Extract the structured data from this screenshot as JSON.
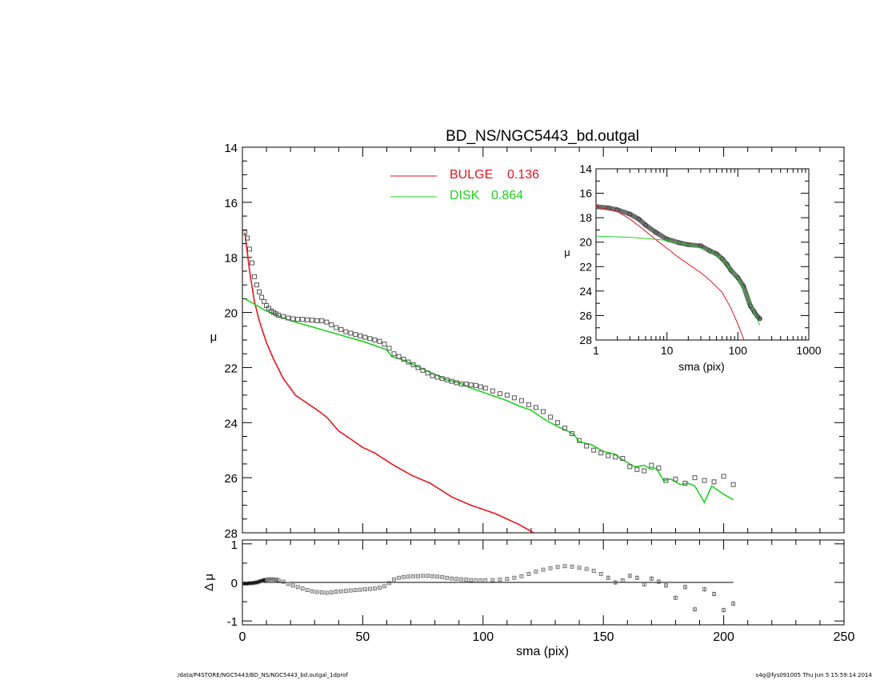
{
  "chart_data": [
    {
      "type": "line",
      "title": "BD_NS/NGC5443_bd.outgal",
      "xlabel": "sma (pix)",
      "ylabel": "μ",
      "xlim": [
        0,
        250
      ],
      "ylim": [
        28,
        14
      ],
      "y_inverted": true,
      "xticks": [
        "0",
        "50",
        "100",
        "150",
        "200",
        "250"
      ],
      "yticks": [
        "14",
        "16",
        "18",
        "20",
        "22",
        "24",
        "26",
        "28"
      ],
      "grid": false,
      "legend": {
        "placement": "top-center",
        "entries": [
          {
            "label": "BULGE",
            "value": "0.136",
            "color": "#e8141e"
          },
          {
            "label": "DISK",
            "value": "0.864",
            "color": "#1ed21e"
          }
        ]
      },
      "series": [
        {
          "name": "BULGE",
          "color": "#e8141e",
          "x": [
            1,
            3,
            5,
            7,
            10,
            13,
            17,
            22,
            27,
            32,
            35,
            40,
            45,
            50,
            55,
            62,
            70,
            78,
            87,
            95,
            105,
            115,
            121
          ],
          "y": [
            17.1,
            18.5,
            19.6,
            20.3,
            21.1,
            21.7,
            22.4,
            23.0,
            23.3,
            23.6,
            23.8,
            24.3,
            24.6,
            24.9,
            25.1,
            25.5,
            25.9,
            26.2,
            26.7,
            27.0,
            27.3,
            27.7,
            28.0
          ]
        },
        {
          "name": "DISK",
          "color": "#1ed21e",
          "x": [
            1,
            5,
            10,
            20,
            30,
            40,
            50,
            60,
            62,
            66,
            70,
            75,
            80,
            85,
            90,
            95,
            100,
            105,
            110,
            115,
            120,
            125,
            130,
            135,
            138,
            140,
            145,
            150,
            155,
            157,
            160,
            163,
            167,
            170,
            172,
            175,
            178,
            182,
            185,
            188,
            192,
            195,
            200,
            204
          ],
          "y": [
            19.5,
            19.7,
            19.95,
            20.3,
            20.55,
            20.8,
            21.05,
            21.35,
            21.6,
            21.7,
            21.85,
            22.05,
            22.25,
            22.45,
            22.55,
            22.75,
            22.9,
            23.05,
            23.2,
            23.4,
            23.55,
            23.85,
            24.1,
            24.3,
            24.45,
            24.7,
            24.8,
            25.05,
            25.15,
            25.3,
            25.45,
            25.6,
            25.55,
            25.7,
            25.65,
            26.1,
            26.05,
            26.25,
            26.2,
            26.3,
            26.9,
            26.3,
            26.6,
            26.8
          ]
        },
        {
          "name": "",
          "type": "scatter",
          "color": "#555555",
          "x": [
            1,
            2,
            3,
            4,
            5,
            6,
            7,
            8,
            9,
            10,
            11,
            12,
            13,
            14,
            15,
            17,
            19,
            21,
            23,
            25,
            27,
            29,
            31,
            33,
            35,
            37,
            39,
            41,
            43,
            45,
            47,
            49,
            51,
            53,
            55,
            57,
            59,
            61,
            63,
            65,
            67,
            69,
            71,
            73,
            75,
            77,
            79,
            81,
            83,
            85,
            87,
            89,
            91,
            93,
            95,
            97,
            99,
            101,
            104,
            107,
            110,
            113,
            116,
            119,
            122,
            125,
            128,
            131,
            134,
            137,
            140,
            143,
            146,
            149,
            152,
            155,
            158,
            161,
            164,
            167,
            170,
            173,
            176,
            180,
            184,
            188,
            192,
            196,
            200,
            204
          ],
          "y": [
            17.1,
            17.3,
            17.7,
            18.2,
            18.7,
            19.0,
            19.25,
            19.45,
            19.6,
            19.75,
            19.85,
            19.95,
            20.0,
            20.05,
            20.1,
            20.15,
            20.2,
            20.23,
            20.25,
            20.25,
            20.27,
            20.28,
            20.3,
            20.3,
            20.35,
            20.45,
            20.55,
            20.62,
            20.7,
            20.75,
            20.8,
            20.85,
            20.9,
            20.95,
            21.0,
            21.05,
            21.15,
            21.3,
            21.5,
            21.6,
            21.7,
            21.8,
            21.9,
            22.0,
            22.1,
            22.2,
            22.3,
            22.35,
            22.4,
            22.45,
            22.5,
            22.55,
            22.6,
            22.6,
            22.63,
            22.65,
            22.7,
            22.75,
            22.85,
            22.95,
            23.0,
            23.1,
            23.2,
            23.35,
            23.45,
            23.6,
            23.8,
            24.0,
            24.2,
            24.4,
            24.65,
            24.85,
            25.0,
            25.1,
            25.2,
            25.25,
            25.3,
            25.6,
            25.7,
            25.75,
            25.55,
            25.65,
            26.1,
            26.05,
            26.2,
            26.0,
            26.1,
            26.15,
            25.95,
            26.25
          ]
        }
      ]
    },
    {
      "type": "line",
      "title": "",
      "xlabel": "sma (pix)",
      "ylabel": "μ",
      "x_scale": "log",
      "xlim": [
        1,
        1000
      ],
      "ylim": [
        28,
        14
      ],
      "y_inverted": true,
      "xticks": [
        "1",
        "10",
        "100",
        "1000"
      ],
      "yticks": [
        "14",
        "16",
        "18",
        "20",
        "22",
        "24",
        "26",
        "28"
      ],
      "series": [
        {
          "name": "BULGE",
          "color": "#e8141e",
          "x": [
            1,
            2,
            3,
            5,
            7,
            10,
            15,
            20,
            30,
            40,
            60,
            80,
            100,
            122
          ],
          "y": [
            17.1,
            17.5,
            18.1,
            19.1,
            19.8,
            20.5,
            21.3,
            21.8,
            22.5,
            23.1,
            24.1,
            25.4,
            26.7,
            28.0
          ]
        },
        {
          "name": "DISK",
          "color": "#1ed21e",
          "x": [
            1,
            3,
            10,
            20,
            40,
            60,
            100,
            150,
            204
          ],
          "y": [
            19.5,
            19.6,
            19.85,
            20.2,
            20.7,
            21.35,
            22.9,
            25.0,
            26.8
          ]
        },
        {
          "name": "",
          "type": "scatter",
          "color": "#555555",
          "x": [
            1,
            1.5,
            2,
            3,
            4,
            5,
            7,
            10,
            15,
            20,
            30,
            40,
            50,
            60,
            70,
            80,
            100,
            120,
            150,
            170,
            190,
            204
          ],
          "y": [
            17.1,
            17.2,
            17.35,
            17.7,
            18.1,
            18.6,
            19.2,
            19.75,
            20.05,
            20.2,
            20.3,
            20.7,
            20.95,
            21.35,
            21.8,
            22.3,
            22.9,
            23.6,
            25.2,
            25.7,
            26.1,
            26.25
          ]
        }
      ]
    },
    {
      "type": "scatter",
      "title": "",
      "xlabel": "sma (pix)",
      "ylabel": "Δ μ",
      "xlim": [
        0,
        250
      ],
      "ylim": [
        -1.1,
        1.1
      ],
      "xticks": [
        "0",
        "50",
        "100",
        "150",
        "200",
        "250"
      ],
      "yticks": [
        "-1",
        "0",
        "1"
      ],
      "reference_line": 0,
      "series": [
        {
          "name": "",
          "color": "#555555",
          "x": [
            1,
            2,
            3,
            4,
            5,
            6,
            7,
            8,
            9,
            10,
            11,
            12,
            13,
            14,
            15,
            17,
            19,
            21,
            23,
            25,
            27,
            29,
            31,
            33,
            35,
            37,
            39,
            41,
            43,
            45,
            47,
            49,
            51,
            53,
            55,
            57,
            59,
            61,
            63,
            65,
            67,
            69,
            71,
            73,
            75,
            77,
            79,
            81,
            83,
            85,
            87,
            89,
            91,
            93,
            95,
            97,
            99,
            101,
            104,
            107,
            110,
            113,
            116,
            119,
            122,
            125,
            128,
            131,
            134,
            137,
            140,
            143,
            146,
            149,
            152,
            155,
            158,
            161,
            164,
            167,
            170,
            173,
            176,
            180,
            184,
            188,
            192,
            196,
            200,
            204
          ],
          "y": [
            -0.03,
            -0.03,
            -0.02,
            -0.02,
            -0.01,
            0.0,
            0.02,
            0.04,
            0.06,
            0.07,
            0.08,
            0.08,
            0.08,
            0.07,
            0.06,
            0.02,
            -0.04,
            -0.08,
            -0.12,
            -0.16,
            -0.2,
            -0.23,
            -0.25,
            -0.26,
            -0.27,
            -0.26,
            -0.24,
            -0.23,
            -0.22,
            -0.21,
            -0.2,
            -0.19,
            -0.18,
            -0.17,
            -0.16,
            -0.14,
            -0.1,
            -0.02,
            0.08,
            0.12,
            0.14,
            0.15,
            0.16,
            0.16,
            0.17,
            0.17,
            0.16,
            0.15,
            0.14,
            0.12,
            0.1,
            0.09,
            0.08,
            0.07,
            0.06,
            0.05,
            0.05,
            0.05,
            0.06,
            0.07,
            0.09,
            0.12,
            0.16,
            0.22,
            0.28,
            0.33,
            0.37,
            0.4,
            0.42,
            0.41,
            0.38,
            0.35,
            0.3,
            0.22,
            0.12,
            0.0,
            0.05,
            0.17,
            0.12,
            -0.05,
            0.1,
            0.02,
            -0.08,
            -0.4,
            -0.12,
            -0.7,
            -0.18,
            -0.3,
            -0.72,
            -0.55
          ]
        }
      ]
    }
  ],
  "footer": {
    "left": "/data/P4STORE/NGC5443/BD_NS/NGC5443_bd.outgal_1dprof",
    "right": "s4g@fys091005  Thu Jun  5 15:59:14 2014"
  }
}
